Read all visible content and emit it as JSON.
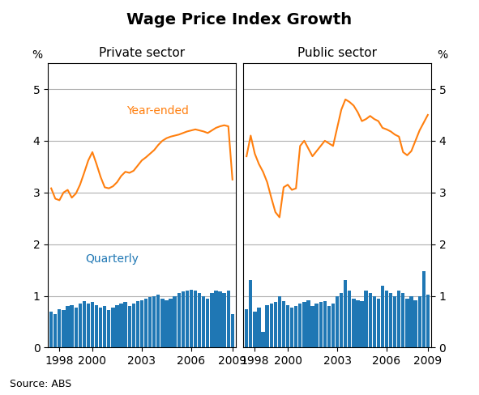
{
  "title": "Wage Price Index Growth",
  "source": "Source: ABS",
  "chart_data": [
    {
      "type": "bar",
      "title": "Private sector",
      "y_label": "%",
      "categories": [
        null,
        null,
        "1998",
        null,
        null,
        null,
        null,
        null,
        null,
        null,
        "2000",
        null,
        null,
        null,
        null,
        null,
        null,
        null,
        null,
        null,
        null,
        null,
        "2003",
        null,
        null,
        null,
        null,
        null,
        null,
        null,
        null,
        null,
        null,
        null,
        "2006",
        null,
        null,
        null,
        null,
        null,
        null,
        null,
        null,
        null,
        "2009"
      ],
      "series": [
        {
          "name": "Quarterly",
          "type": "bar",
          "values": [
            0.7,
            0.65,
            0.75,
            0.72,
            0.8,
            0.82,
            0.78,
            0.85,
            0.9,
            0.85,
            0.88,
            0.82,
            0.78,
            0.8,
            0.72,
            0.78,
            0.82,
            0.85,
            0.88,
            0.8,
            0.85,
            0.9,
            0.92,
            0.95,
            0.98,
            1.0,
            1.02,
            0.95,
            0.92,
            0.95,
            1.0,
            1.05,
            1.08,
            1.1,
            1.12,
            1.1,
            1.05,
            1.0,
            0.95,
            1.05,
            1.1,
            1.08,
            1.05,
            1.1,
            0.65
          ]
        },
        {
          "name": "Year-ended",
          "type": "line",
          "values": [
            3.08,
            2.88,
            2.85,
            3.0,
            3.05,
            2.9,
            2.98,
            3.15,
            3.38,
            3.62,
            3.78,
            3.55,
            3.3,
            3.1,
            3.08,
            3.12,
            3.2,
            3.32,
            3.4,
            3.38,
            3.42,
            3.52,
            3.62,
            3.68,
            3.75,
            3.82,
            3.92,
            4.0,
            4.05,
            4.08,
            4.1,
            4.12,
            4.15,
            4.18,
            4.2,
            4.22,
            4.2,
            4.18,
            4.15,
            4.2,
            4.25,
            4.28,
            4.3,
            4.28,
            3.25
          ]
        }
      ],
      "ylim": [
        0,
        5.5
      ],
      "yticks": [
        0,
        1,
        2,
        3,
        4,
        5
      ],
      "grid": true
    },
    {
      "type": "bar",
      "title": "Public sector",
      "y_label": "%",
      "categories": [
        null,
        null,
        "1998",
        null,
        null,
        null,
        null,
        null,
        null,
        null,
        "2000",
        null,
        null,
        null,
        null,
        null,
        null,
        null,
        null,
        null,
        null,
        null,
        "2003",
        null,
        null,
        null,
        null,
        null,
        null,
        null,
        null,
        null,
        null,
        null,
        "2006",
        null,
        null,
        null,
        null,
        null,
        null,
        null,
        null,
        null,
        "2009"
      ],
      "series": [
        {
          "type": "bar",
          "values": [
            0.75,
            1.3,
            0.7,
            0.78,
            0.3,
            0.82,
            0.85,
            0.88,
            1.0,
            0.9,
            0.82,
            0.78,
            0.8,
            0.85,
            0.88,
            0.92,
            0.8,
            0.85,
            0.88,
            0.9,
            0.8,
            0.85,
            1.0,
            1.05,
            1.3,
            1.1,
            0.95,
            0.92,
            0.9,
            1.1,
            1.05,
            1.0,
            0.95,
            1.2,
            1.1,
            1.05,
            1.0,
            1.1,
            1.05,
            0.95,
            1.0,
            0.92,
            1.0,
            1.48,
            1.02
          ]
        },
        {
          "type": "line",
          "values": [
            3.7,
            4.1,
            3.75,
            3.55,
            3.4,
            3.2,
            2.9,
            2.62,
            2.52,
            3.1,
            3.15,
            3.05,
            3.08,
            3.9,
            4.0,
            3.85,
            3.7,
            3.8,
            3.9,
            4.0,
            3.95,
            3.9,
            4.25,
            4.6,
            4.8,
            4.75,
            4.68,
            4.55,
            4.38,
            4.42,
            4.48,
            4.42,
            4.38,
            4.25,
            4.22,
            4.18,
            4.12,
            4.08,
            3.78,
            3.72,
            3.8,
            4.0,
            4.2,
            4.35,
            4.5
          ]
        }
      ],
      "ylim": [
        0,
        5.5
      ],
      "yticks": [
        0,
        1,
        2,
        3,
        4,
        5
      ],
      "grid": true
    }
  ]
}
